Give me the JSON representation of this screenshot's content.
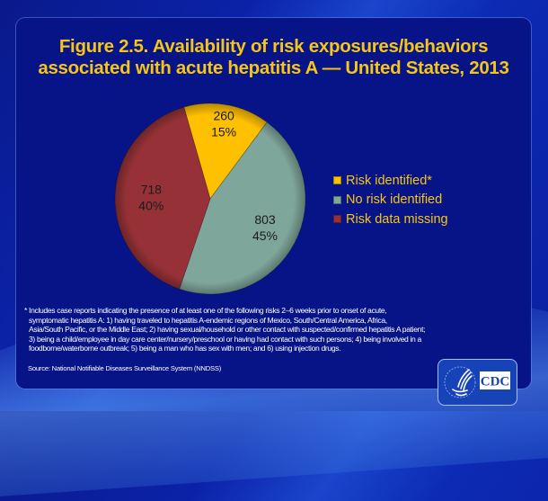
{
  "title_lines": [
    "Figure 2.5. Availability of risk exposures/behaviors",
    "associated with acute hepatitis A — United States, 2013"
  ],
  "chart_data": {
    "type": "pie",
    "title": "Figure 2.5. Availability of risk exposures/behaviors associated with acute hepatitis A — United States, 2013",
    "categories": [
      "Risk identified*",
      "No risk identified",
      "Risk data missing"
    ],
    "values": [
      260,
      803,
      718
    ],
    "percents": [
      15,
      45,
      40
    ],
    "data_labels": [
      {
        "count": "260",
        "percent": "15%"
      },
      {
        "count": "803",
        "percent": "45%"
      },
      {
        "count": "718",
        "percent": "40%"
      }
    ],
    "colors": [
      "#ffc000",
      "#7fa69a",
      "#963237"
    ],
    "legend_position": "right"
  },
  "legend": [
    {
      "label": "Risk identified*",
      "color": "#ffc000"
    },
    {
      "label": "No risk identified",
      "color": "#7fa69a"
    },
    {
      "label": "Risk data missing",
      "color": "#963237"
    }
  ],
  "footnote_lines": [
    "* Includes case reports indicating the presence of at least one of the following risks 2–6 weeks prior to onset of acute,",
    "symptomatic hepatitis A: 1)  having traveled to hepatitis A-endemic regions of Mexico, South/Central America,  Africa,",
    "Asia/South Pacific, or the Middle East; 2) having sexual/household or other contact with suspected/confirmed hepatitis A patient;",
    "3) being a child/employee in day care center/nursery/preschool  or having had contact with such persons; 4) being involved in a",
    "foodborne/waterborne outbreak; 5) being a man who has sex with men; and 6) using injection drugs."
  ],
  "source": "Source: National  Notifiable  Diseases  Surveillance System (NNDSS)",
  "logo": {
    "text": "CDC",
    "name": "cdc-logo"
  }
}
